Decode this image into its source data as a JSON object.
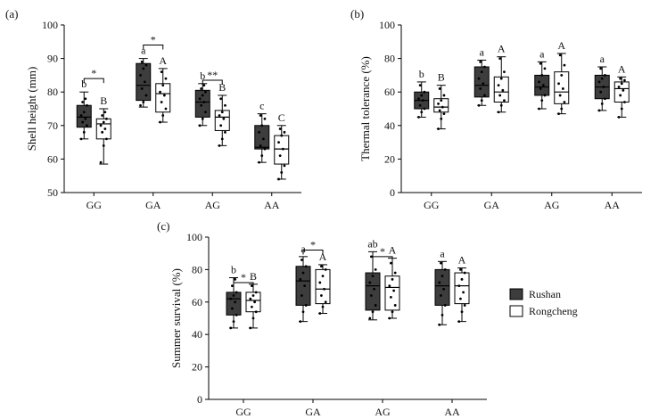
{
  "colors": {
    "rushan": "#3d3d3d",
    "rongcheng": "#ffffff",
    "stroke": "#000000",
    "dot": "#000000"
  },
  "legend": {
    "items": [
      {
        "name": "Rushan",
        "color": "#3d3d3d"
      },
      {
        "name": "Rongcheng",
        "color": "#ffffff"
      }
    ]
  },
  "chart_data": [
    {
      "type": "box",
      "panel_label": "(a)",
      "ylabel": "Shell height (mm)",
      "xlabel": "",
      "ylim": [
        50,
        100
      ],
      "yticks": [
        50,
        60,
        70,
        80,
        90,
        100
      ],
      "categories": [
        "GG",
        "GA",
        "AG",
        "AA"
      ],
      "series": [
        {
          "name": "Rushan",
          "boxes": [
            {
              "min": 66,
              "q1": 69.5,
              "median": 72.5,
              "q3": 76,
              "max": 80,
              "points": [
                66,
                68,
                70,
                71,
                72,
                73,
                74,
                76,
                77,
                78
              ]
            },
            {
              "min": 75.5,
              "q1": 77.5,
              "median": 82,
              "q3": 88.5,
              "max": 90,
              "points": [
                76,
                77,
                79,
                81,
                83,
                85,
                87,
                88,
                89
              ]
            },
            {
              "min": 70,
              "q1": 72.5,
              "median": 77,
              "q3": 80.5,
              "max": 82.5,
              "points": [
                70,
                72,
                74,
                76,
                77,
                78,
                79,
                80,
                81,
                82
              ]
            },
            {
              "min": 59,
              "q1": 63,
              "median": 63.5,
              "q3": 70,
              "max": 73.5,
              "points": [
                59,
                61,
                63,
                64,
                66,
                68,
                70,
                72,
                73
              ]
            }
          ]
        },
        {
          "name": "Rongcheng",
          "boxes": [
            {
              "min": 58.5,
              "q1": 66,
              "median": 70.5,
              "q3": 72,
              "max": 75,
              "points": [
                59,
                64,
                66,
                68,
                69,
                70,
                71,
                72,
                73,
                74
              ]
            },
            {
              "min": 71,
              "q1": 74,
              "median": 79.5,
              "q3": 82.5,
              "max": 87,
              "points": [
                71,
                73,
                75,
                77,
                79,
                80,
                82,
                84,
                86
              ]
            },
            {
              "min": 64,
              "q1": 68.5,
              "median": 72.5,
              "q3": 74.5,
              "max": 79,
              "points": [
                64,
                66,
                68,
                70,
                72,
                73,
                74,
                76,
                78
              ]
            },
            {
              "min": 54,
              "q1": 58.5,
              "median": 63,
              "q3": 67,
              "max": 70,
              "points": [
                54,
                56,
                58,
                61,
                63,
                65,
                67,
                68,
                69
              ]
            }
          ]
        }
      ],
      "letters": {
        "Rushan": [
          "b",
          "a",
          "b",
          "c"
        ],
        "Rongcheng": [
          "B",
          "A",
          "B",
          "C"
        ]
      },
      "brackets": [
        {
          "category_index": 0,
          "label": "*",
          "y": 84
        },
        {
          "category_index": 1,
          "label": "*",
          "y": 94
        },
        {
          "category_index": 2,
          "label": "**",
          "y": 83.5
        }
      ]
    },
    {
      "type": "box",
      "panel_label": "(b)",
      "ylabel": "Thermal tolerance (%)",
      "xlabel": "",
      "ylim": [
        0,
        100
      ],
      "yticks": [
        0,
        20,
        40,
        60,
        80,
        100
      ],
      "categories": [
        "GG",
        "GA",
        "AG",
        "AA"
      ],
      "series": [
        {
          "name": "Rushan",
          "boxes": [
            {
              "min": 45,
              "q1": 50,
              "median": 55,
              "q3": 60,
              "max": 66,
              "points": [
                45,
                48,
                50,
                52,
                55,
                56,
                58,
                60,
                64
              ]
            },
            {
              "min": 52,
              "q1": 57,
              "median": 64,
              "q3": 75,
              "max": 79,
              "points": [
                52,
                55,
                58,
                62,
                65,
                68,
                72,
                75,
                78
              ]
            },
            {
              "min": 50,
              "q1": 58,
              "median": 63,
              "q3": 70,
              "max": 78,
              "points": [
                50,
                55,
                58,
                62,
                64,
                66,
                70,
                74,
                77
              ]
            },
            {
              "min": 49,
              "q1": 56,
              "median": 63,
              "q3": 70,
              "max": 75,
              "points": [
                49,
                53,
                56,
                60,
                63,
                66,
                68,
                70,
                74
              ]
            }
          ]
        },
        {
          "name": "Rongcheng",
          "boxes": [
            {
              "min": 38,
              "q1": 48,
              "median": 51,
              "q3": 56,
              "max": 64,
              "points": [
                38,
                44,
                47,
                49,
                51,
                53,
                55,
                58,
                62
              ]
            },
            {
              "min": 48,
              "q1": 54,
              "median": 60,
              "q3": 69,
              "max": 81,
              "points": [
                48,
                52,
                55,
                58,
                61,
                64,
                68,
                72,
                80
              ]
            },
            {
              "min": 47,
              "q1": 53,
              "median": 60,
              "q3": 72,
              "max": 83,
              "points": [
                47,
                50,
                54,
                58,
                62,
                65,
                70,
                76,
                82
              ]
            },
            {
              "min": 45,
              "q1": 54,
              "median": 62,
              "q3": 66,
              "max": 69,
              "points": [
                45,
                50,
                54,
                58,
                61,
                63,
                65,
                67,
                68
              ]
            }
          ]
        }
      ],
      "letters": {
        "Rushan": [
          "b",
          "a",
          "a",
          "a"
        ],
        "Rongcheng": [
          "B",
          "A",
          "A",
          "A"
        ]
      },
      "brackets": []
    },
    {
      "type": "box",
      "panel_label": "(c)",
      "ylabel": "Summer survival (%)",
      "xlabel": "",
      "ylim": [
        0,
        100
      ],
      "yticks": [
        0,
        20,
        40,
        60,
        80,
        100
      ],
      "categories": [
        "GG",
        "GA",
        "AG",
        "AA"
      ],
      "series": [
        {
          "name": "Rushan",
          "boxes": [
            {
              "min": 44,
              "q1": 52,
              "median": 62,
              "q3": 66,
              "max": 75,
              "points": [
                44,
                48,
                52,
                56,
                60,
                62,
                64,
                66,
                70,
                74
              ]
            },
            {
              "min": 48,
              "q1": 58,
              "median": 73,
              "q3": 82,
              "max": 88,
              "points": [
                48,
                54,
                58,
                64,
                70,
                74,
                78,
                82,
                86
              ]
            },
            {
              "min": 49,
              "q1": 55,
              "median": 70,
              "q3": 78,
              "max": 91,
              "points": [
                50,
                54,
                58,
                64,
                68,
                72,
                76,
                80,
                88
              ]
            },
            {
              "min": 46,
              "q1": 58,
              "median": 70,
              "q3": 80,
              "max": 85,
              "points": [
                46,
                52,
                58,
                64,
                68,
                72,
                76,
                80,
                84
              ]
            }
          ]
        },
        {
          "name": "Rongcheng",
          "boxes": [
            {
              "min": 44,
              "q1": 54,
              "median": 61,
              "q3": 66,
              "max": 71,
              "points": [
                44,
                50,
                54,
                57,
                60,
                62,
                64,
                66,
                70
              ]
            },
            {
              "min": 53,
              "q1": 59,
              "median": 68,
              "q3": 80,
              "max": 83,
              "points": [
                53,
                57,
                60,
                64,
                68,
                72,
                76,
                80,
                82
              ]
            },
            {
              "min": 50,
              "q1": 55,
              "median": 69,
              "q3": 76,
              "max": 87,
              "points": [
                50,
                54,
                58,
                63,
                67,
                70,
                74,
                78,
                84
              ]
            },
            {
              "min": 48,
              "q1": 59,
              "median": 70,
              "q3": 78,
              "max": 81,
              "points": [
                48,
                54,
                58,
                62,
                66,
                70,
                74,
                78,
                80
              ]
            }
          ]
        }
      ],
      "letters": {
        "Rushan": [
          "b",
          "a",
          "ab",
          "a"
        ],
        "Rongcheng": [
          "B",
          "A",
          "A",
          "A"
        ]
      },
      "brackets": [
        {
          "category_index": 0,
          "label": "*",
          "y": 72
        },
        {
          "category_index": 1,
          "label": "*",
          "y": 92
        },
        {
          "category_index": 2,
          "label": "*",
          "y": 88
        }
      ]
    }
  ]
}
